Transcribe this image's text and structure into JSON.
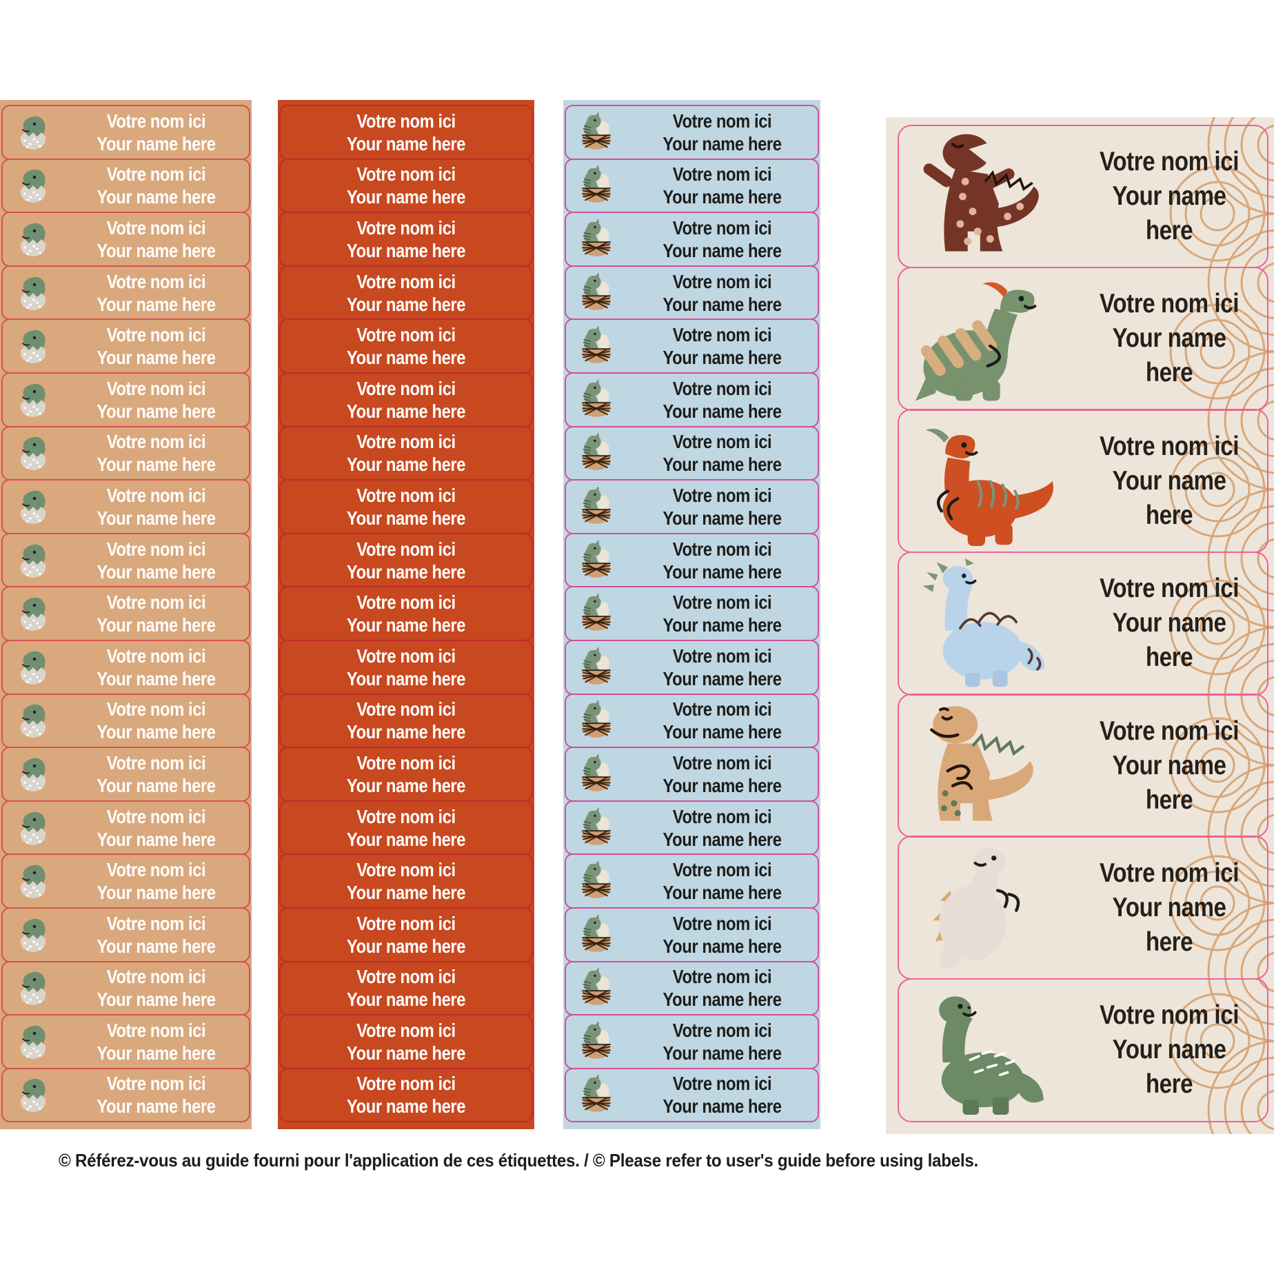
{
  "sheet": {
    "background": "#ffffff"
  },
  "label_text": {
    "line1": "Votre nom ici",
    "line2": "Your name here"
  },
  "footer": {
    "text": "© Référez-vous au guide fourni pour l'application de ces étiquettes. / © Please refer to user's guide before using labels."
  },
  "columns": {
    "tan": {
      "rows": 19,
      "bg": "#d9a87d",
      "border": "#d8504e",
      "text_color": "#ffffff",
      "icon": "dino-hatchling-egg-icon"
    },
    "red": {
      "rows": 19,
      "bg": "#c8481f",
      "border": "#c02b2e",
      "text_color": "#ffffff",
      "icon": ""
    },
    "blue": {
      "rows": 19,
      "bg": "#bfd7e2",
      "border": "#cf4f9b",
      "text_color": "#1d1d1b",
      "icon": "dino-nest-egg-icon"
    },
    "cream": {
      "rows": 7,
      "bg": "#ede5da",
      "border": "#ee6195",
      "text_color": "#262019",
      "lace_color": "#d8a77a",
      "dinos": [
        "brown-trex-icon",
        "green-parasaurolophus-icon",
        "orange-parasaurolophus-icon",
        "blue-spiky-dino-icon",
        "tan-trex-icon",
        "cream-triangle-dino-icon",
        "green-brontosaurus-icon"
      ]
    }
  },
  "dino_colors": {
    "brown_trex": "#743527",
    "green_parasaurolophus": "#77926d",
    "orange_parasaurolophus": "#cd4f22",
    "blue_spiky_dino": "#b9d4ea",
    "tan_trex": "#d8a878",
    "cream_triangle_dino": "#e6ded4",
    "green_brontosaurus": "#6d8a66"
  }
}
